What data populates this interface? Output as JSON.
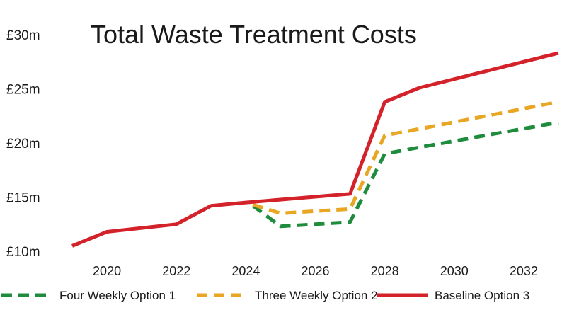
{
  "chart_data": {
    "type": "line",
    "title": "Total Waste Treatment Costs",
    "xlabel": "",
    "ylabel": "",
    "xlim": [
      2019,
      2033
    ],
    "ylim": [
      10,
      30
    ],
    "x_ticks": [
      "2020",
      "2022",
      "2024",
      "2026",
      "2028",
      "2030",
      "2032"
    ],
    "y_ticks": [
      "£10m",
      "£15m",
      "£20m",
      "£25m",
      "£30m"
    ],
    "grid": false,
    "legend_position": "bottom",
    "series": [
      {
        "name": "Four Weekly Option 1",
        "color": "#1e8c3c",
        "style": "dashed",
        "x": [
          2024.2,
          2025,
          2027,
          2028,
          2029,
          2033
        ],
        "y": [
          14.2,
          12.3,
          12.7,
          19.0,
          19.6,
          21.9
        ]
      },
      {
        "name": "Three Weekly Option 2",
        "color": "#e8a623",
        "style": "dashed",
        "x": [
          2024.2,
          2025,
          2027,
          2028,
          2029,
          2033
        ],
        "y": [
          14.3,
          13.5,
          13.9,
          20.7,
          21.3,
          23.8
        ]
      },
      {
        "name": "Baseline Option 3",
        "color": "#d3222a",
        "style": "solid",
        "x": [
          2019,
          2020,
          2022,
          2023,
          2024,
          2027,
          2028,
          2029,
          2033
        ],
        "y": [
          10.5,
          11.8,
          12.5,
          14.2,
          14.5,
          15.3,
          23.8,
          25.1,
          28.3
        ]
      }
    ]
  }
}
